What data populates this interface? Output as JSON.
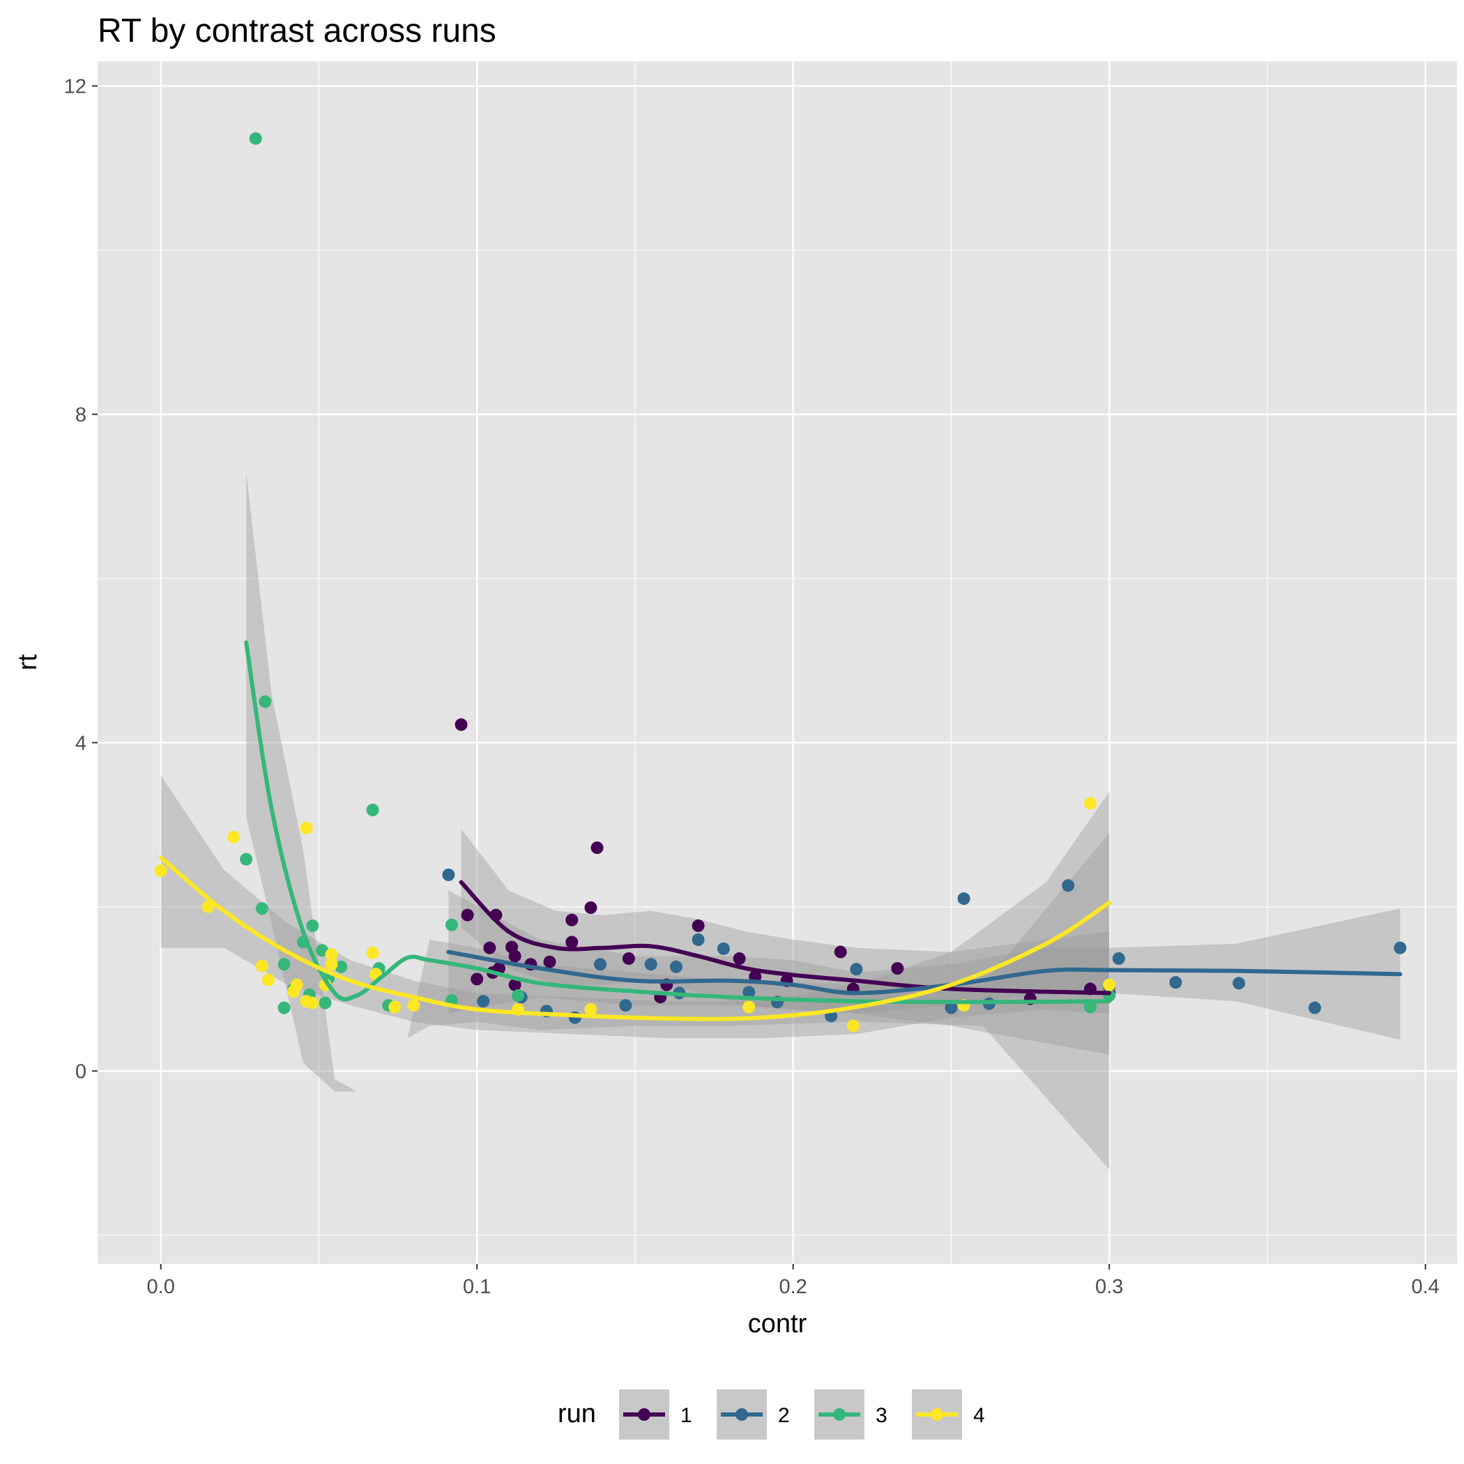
{
  "chart_data": {
    "type": "scatter",
    "title": "RT by contrast across runs",
    "xlabel": "contr",
    "ylabel": "rt",
    "xlim": [
      -0.02,
      0.41
    ],
    "ylim": [
      -2.35,
      12.3
    ],
    "x_ticks": [
      0.0,
      0.1,
      0.2,
      0.3,
      0.4
    ],
    "x_tick_labels": [
      "0.0",
      "0.1",
      "0.2",
      "0.3",
      "0.4"
    ],
    "y_ticks": [
      0,
      4,
      8,
      12
    ],
    "y_tick_labels": [
      "0",
      "4",
      "8",
      "12"
    ],
    "grid": true,
    "legend": {
      "title": "run",
      "position": "bottom"
    },
    "series": [
      {
        "name": "1",
        "color": "#440154",
        "points": [
          [
            0.095,
            4.22
          ],
          [
            0.138,
            2.72
          ],
          [
            0.136,
            1.99
          ],
          [
            0.13,
            1.84
          ],
          [
            0.106,
            1.9
          ],
          [
            0.097,
            1.9
          ],
          [
            0.111,
            1.51
          ],
          [
            0.104,
            1.5
          ],
          [
            0.112,
            1.4
          ],
          [
            0.13,
            1.57
          ],
          [
            0.17,
            1.77
          ],
          [
            0.215,
            1.45
          ],
          [
            0.183,
            1.37
          ],
          [
            0.117,
            1.3
          ],
          [
            0.123,
            1.33
          ],
          [
            0.148,
            1.37
          ],
          [
            0.107,
            1.25
          ],
          [
            0.105,
            1.2
          ],
          [
            0.112,
            1.05
          ],
          [
            0.1,
            1.12
          ],
          [
            0.16,
            1.05
          ],
          [
            0.158,
            0.9
          ],
          [
            0.233,
            1.25
          ],
          [
            0.188,
            1.15
          ],
          [
            0.198,
            1.1
          ],
          [
            0.219,
            1.0
          ],
          [
            0.294,
            1.0
          ],
          [
            0.3,
            0.95
          ],
          [
            0.275,
            0.88
          ]
        ],
        "smooth": [
          [
            0.095,
            2.3
          ],
          [
            0.11,
            1.7
          ],
          [
            0.125,
            1.5
          ],
          [
            0.14,
            1.5
          ],
          [
            0.155,
            1.52
          ],
          [
            0.17,
            1.4
          ],
          [
            0.185,
            1.25
          ],
          [
            0.2,
            1.17
          ],
          [
            0.22,
            1.1
          ],
          [
            0.25,
            1.0
          ],
          [
            0.3,
            0.95
          ]
        ],
        "band": [
          [
            0.095,
            2.95,
            1.75
          ],
          [
            0.11,
            2.2,
            1.25
          ],
          [
            0.125,
            1.95,
            1.05
          ],
          [
            0.14,
            1.9,
            1.05
          ],
          [
            0.155,
            1.95,
            1.1
          ],
          [
            0.17,
            1.85,
            0.95
          ],
          [
            0.185,
            1.7,
            0.8
          ],
          [
            0.2,
            1.6,
            0.75
          ],
          [
            0.22,
            1.5,
            0.7
          ],
          [
            0.25,
            1.45,
            0.55
          ],
          [
            0.3,
            1.7,
            0.2
          ]
        ]
      },
      {
        "name": "2",
        "color": "#31688e",
        "points": [
          [
            0.091,
            2.39
          ],
          [
            0.254,
            2.1
          ],
          [
            0.287,
            2.26
          ],
          [
            0.17,
            1.6
          ],
          [
            0.178,
            1.49
          ],
          [
            0.392,
            1.5
          ],
          [
            0.303,
            1.37
          ],
          [
            0.139,
            1.3
          ],
          [
            0.155,
            1.3
          ],
          [
            0.163,
            1.27
          ],
          [
            0.22,
            1.24
          ],
          [
            0.321,
            1.08
          ],
          [
            0.341,
            1.07
          ],
          [
            0.365,
            0.77
          ],
          [
            0.122,
            0.73
          ],
          [
            0.131,
            0.65
          ],
          [
            0.147,
            0.8
          ],
          [
            0.195,
            0.84
          ],
          [
            0.212,
            0.67
          ],
          [
            0.262,
            0.82
          ],
          [
            0.25,
            0.77
          ],
          [
            0.102,
            0.85
          ],
          [
            0.164,
            0.95
          ],
          [
            0.3,
            1.02
          ],
          [
            0.114,
            0.9
          ],
          [
            0.186,
            0.96
          ]
        ],
        "smooth": [
          [
            0.091,
            1.45
          ],
          [
            0.12,
            1.25
          ],
          [
            0.15,
            1.1
          ],
          [
            0.18,
            1.1
          ],
          [
            0.2,
            1.05
          ],
          [
            0.22,
            0.95
          ],
          [
            0.25,
            1.05
          ],
          [
            0.28,
            1.22
          ],
          [
            0.3,
            1.23
          ],
          [
            0.34,
            1.22
          ],
          [
            0.392,
            1.18
          ]
        ],
        "band": [
          [
            0.091,
            2.2,
            0.7
          ],
          [
            0.12,
            1.6,
            0.9
          ],
          [
            0.15,
            1.4,
            0.8
          ],
          [
            0.18,
            1.4,
            0.8
          ],
          [
            0.2,
            1.35,
            0.75
          ],
          [
            0.22,
            1.2,
            0.7
          ],
          [
            0.25,
            1.3,
            0.8
          ],
          [
            0.28,
            1.5,
            0.95
          ],
          [
            0.3,
            1.5,
            0.95
          ],
          [
            0.34,
            1.55,
            0.85
          ],
          [
            0.392,
            1.98,
            0.38
          ]
        ]
      },
      {
        "name": "3",
        "color": "#35b779",
        "points": [
          [
            0.03,
            11.36
          ],
          [
            0.033,
            4.5
          ],
          [
            0.067,
            3.18
          ],
          [
            0.027,
            2.58
          ],
          [
            0.032,
            1.98
          ],
          [
            0.048,
            1.77
          ],
          [
            0.045,
            1.57
          ],
          [
            0.051,
            1.47
          ],
          [
            0.092,
            1.78
          ],
          [
            0.039,
            1.3
          ],
          [
            0.057,
            1.27
          ],
          [
            0.053,
            1.13
          ],
          [
            0.069,
            1.25
          ],
          [
            0.042,
            1.0
          ],
          [
            0.047,
            0.93
          ],
          [
            0.052,
            0.83
          ],
          [
            0.039,
            0.77
          ],
          [
            0.072,
            0.8
          ],
          [
            0.113,
            0.92
          ],
          [
            0.092,
            0.86
          ],
          [
            0.294,
            0.78
          ],
          [
            0.3,
            0.92
          ]
        ],
        "smooth": [
          [
            0.027,
            5.22
          ],
          [
            0.035,
            3.2
          ],
          [
            0.045,
            1.7
          ],
          [
            0.055,
            0.95
          ],
          [
            0.062,
            0.92
          ],
          [
            0.07,
            1.15
          ],
          [
            0.078,
            1.38
          ],
          [
            0.085,
            1.35
          ],
          [
            0.1,
            1.25
          ],
          [
            0.12,
            1.07
          ],
          [
            0.15,
            0.97
          ],
          [
            0.18,
            0.9
          ],
          [
            0.22,
            0.85
          ],
          [
            0.26,
            0.84
          ],
          [
            0.3,
            0.85
          ]
        ],
        "band": [
          [
            0.027,
            7.3,
            3.1
          ],
          [
            0.035,
            4.6,
            1.8
          ],
          [
            0.045,
            2.7,
            0.1
          ],
          [
            0.055,
            -0.1,
            -0.25
          ],
          [
            0.062,
            -0.25,
            -0.25
          ],
          [
            0.07,
            -0.1,
            -0.1
          ],
          [
            0.078,
            0.4,
            0.4
          ],
          [
            0.085,
            1.6,
            0.55
          ],
          [
            0.1,
            1.5,
            0.6
          ],
          [
            0.12,
            1.3,
            0.5
          ],
          [
            0.15,
            1.2,
            0.55
          ],
          [
            0.18,
            1.1,
            0.55
          ],
          [
            0.22,
            1.05,
            0.6
          ],
          [
            0.26,
            1.05,
            0.55
          ],
          [
            0.3,
            2.9,
            -1.2
          ]
        ]
      },
      {
        "name": "4",
        "color": "#fde725",
        "points": [
          [
            0.0,
            2.44
          ],
          [
            0.023,
            2.85
          ],
          [
            0.046,
            2.96
          ],
          [
            0.015,
            2.0
          ],
          [
            0.294,
            3.26
          ],
          [
            0.032,
            1.28
          ],
          [
            0.034,
            1.11
          ],
          [
            0.043,
            1.05
          ],
          [
            0.042,
            0.97
          ],
          [
            0.046,
            0.85
          ],
          [
            0.048,
            0.83
          ],
          [
            0.052,
            1.05
          ],
          [
            0.054,
            1.3
          ],
          [
            0.054,
            1.42
          ],
          [
            0.067,
            1.44
          ],
          [
            0.068,
            1.18
          ],
          [
            0.074,
            0.78
          ],
          [
            0.08,
            0.8
          ],
          [
            0.113,
            0.75
          ],
          [
            0.136,
            0.75
          ],
          [
            0.186,
            0.78
          ],
          [
            0.219,
            0.55
          ],
          [
            0.254,
            0.8
          ],
          [
            0.3,
            1.05
          ]
        ],
        "smooth": [
          [
            0.0,
            2.6
          ],
          [
            0.02,
            1.95
          ],
          [
            0.04,
            1.45
          ],
          [
            0.06,
            1.1
          ],
          [
            0.08,
            0.9
          ],
          [
            0.1,
            0.75
          ],
          [
            0.13,
            0.68
          ],
          [
            0.16,
            0.64
          ],
          [
            0.19,
            0.65
          ],
          [
            0.22,
            0.78
          ],
          [
            0.25,
            1.05
          ],
          [
            0.28,
            1.55
          ],
          [
            0.3,
            2.05
          ]
        ],
        "band": [
          [
            0.0,
            3.6,
            1.5
          ],
          [
            0.02,
            2.45,
            1.5
          ],
          [
            0.04,
            1.8,
            1.05
          ],
          [
            0.06,
            1.35,
            0.8
          ],
          [
            0.08,
            1.1,
            0.6
          ],
          [
            0.1,
            0.95,
            0.5
          ],
          [
            0.13,
            0.9,
            0.45
          ],
          [
            0.16,
            0.85,
            0.4
          ],
          [
            0.19,
            0.85,
            0.4
          ],
          [
            0.22,
            1.05,
            0.45
          ],
          [
            0.25,
            1.45,
            0.65
          ],
          [
            0.28,
            2.3,
            0.75
          ],
          [
            0.3,
            3.4,
            0.7
          ]
        ]
      }
    ]
  }
}
